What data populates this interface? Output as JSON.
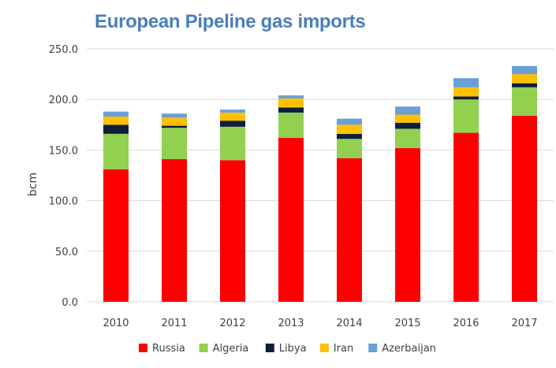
{
  "chart_data": {
    "type": "bar",
    "stacked": true,
    "title": "European Pipeline gas imports",
    "xlabel": "",
    "ylabel": "bcm",
    "ylim": [
      0,
      250
    ],
    "yticks": [
      "0.0",
      "50.0",
      "100.0",
      "150.0",
      "200.0",
      "250.0"
    ],
    "categories": [
      "2010",
      "2011",
      "2012",
      "2013",
      "2014",
      "2015",
      "2016",
      "2017"
    ],
    "series": [
      {
        "name": "Russia",
        "color": "#ff0000",
        "values": [
          131,
          141,
          140,
          162,
          142,
          152,
          167,
          184
        ]
      },
      {
        "name": "Algeria",
        "color": "#92d050",
        "values": [
          35,
          31,
          33,
          25,
          19,
          19,
          33,
          28
        ]
      },
      {
        "name": "Libya",
        "color": "#0d1f3c",
        "values": [
          9,
          2,
          6,
          5,
          5,
          6,
          3,
          4
        ]
      },
      {
        "name": "Iran",
        "color": "#ffc000",
        "values": [
          8,
          8,
          8,
          9,
          9,
          8,
          9,
          9
        ]
      },
      {
        "name": "Azerbaijan",
        "color": "#6a9fd8",
        "values": [
          5,
          4,
          3,
          3,
          6,
          8,
          9,
          8
        ]
      }
    ],
    "grid": true,
    "legend_position": "bottom"
  }
}
